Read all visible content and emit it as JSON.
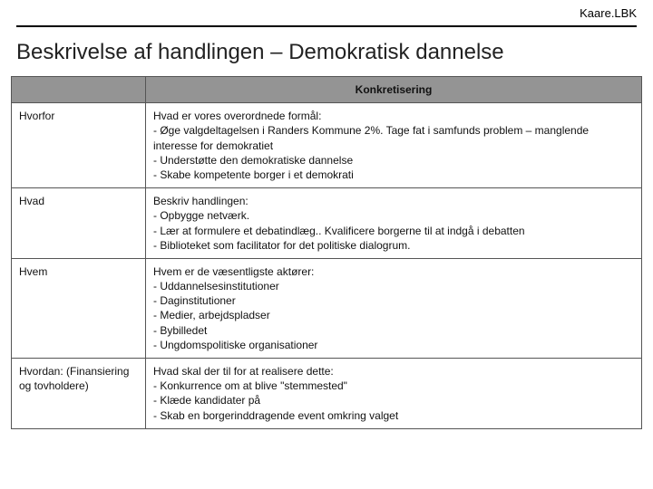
{
  "header": {
    "brand": "Kaare.LBK"
  },
  "title": "Beskrivelse af handlingen – Demokratisk dannelse",
  "table": {
    "header_right": "Konkretisering",
    "rows": [
      {
        "label": "Hvorfor",
        "lead": "Hvad er vores overordnede formål:",
        "lines": [
          "- Øge valgdeltagelsen i Randers Kommune 2%. Tage fat i samfunds problem – manglende interesse for demokratiet",
          "- Understøtte den demokratiske dannelse",
          "- Skabe kompetente borger i et demokrati"
        ]
      },
      {
        "label": "Hvad",
        "lead": "Beskriv handlingen:",
        "lines": [
          "- Opbygge netværk.",
          "- Lær at formulere et debatindlæg.. Kvalificere borgerne til at indgå i debatten",
          "- Biblioteket som facilitator for det politiske dialogrum."
        ]
      },
      {
        "label": "Hvem",
        "lead": "Hvem er de væsentligste aktører:",
        "lines": [
          "- Uddannelsesinstitutioner",
          "- Daginstitutioner",
          "- Medier, arbejdspladser",
          "- Bybilledet",
          "- Ungdomspolitiske organisationer"
        ]
      },
      {
        "label": "Hvordan: (Finansiering og tovholdere)",
        "lead": "Hvad skal der til for at realisere dette:",
        "lines": [
          "- Konkurrence om at blive \"stemmested\"",
          "- Klæde kandidater på",
          "- Skab en borgerinddragende event omkring valget"
        ]
      }
    ]
  },
  "colors": {
    "header_bg": "#949494",
    "border": "#555555",
    "text": "#111111",
    "page_bg": "#ffffff"
  }
}
